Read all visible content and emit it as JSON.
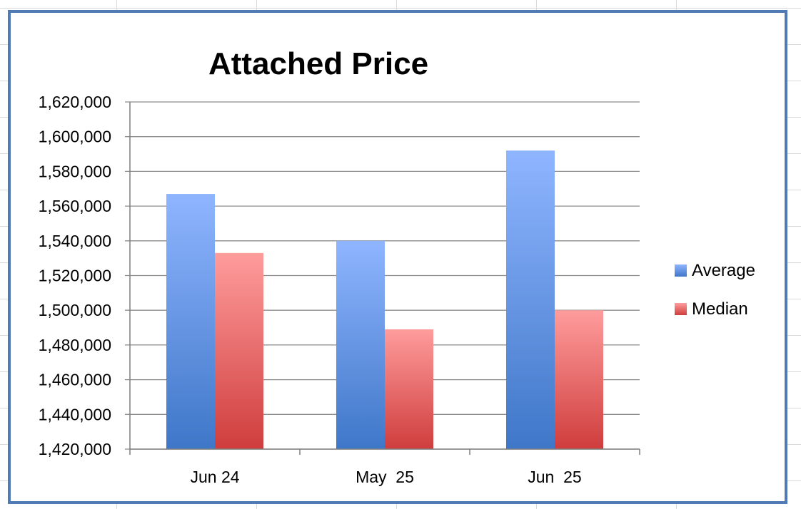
{
  "chart_data": {
    "type": "bar",
    "title": "Attached Price",
    "xlabel": "",
    "ylabel": "",
    "categories": [
      "Jun 24",
      "May  25",
      "Jun  25"
    ],
    "series": [
      {
        "name": "Average",
        "values": [
          1567000,
          1540000,
          1592000
        ],
        "color_top": "#8fb5ff",
        "color_bottom": "#3f77c8"
      },
      {
        "name": "Median",
        "values": [
          1533000,
          1489000,
          1500000
        ],
        "color_top": "#ff9c9c",
        "color_bottom": "#cf3d3d"
      }
    ],
    "ylim": [
      1420000,
      1620000
    ],
    "yticks": [
      1420000,
      1440000,
      1460000,
      1480000,
      1500000,
      1520000,
      1540000,
      1560000,
      1580000,
      1600000,
      1620000
    ],
    "ytick_labels": [
      "1,420,000",
      "1,440,000",
      "1,460,000",
      "1,480,000",
      "1,500,000",
      "1,520,000",
      "1,540,000",
      "1,560,000",
      "1,580,000",
      "1,600,000",
      "1,620,000"
    ],
    "grid": true,
    "legend_position": "right"
  }
}
